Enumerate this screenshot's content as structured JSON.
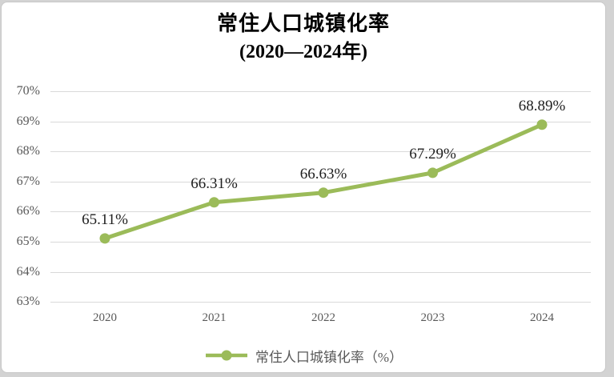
{
  "window": {
    "background_color": "#d3d3d3",
    "chart_background_color": "#ffffff",
    "chart_border_color": "#c9c9c9"
  },
  "chart_data": {
    "type": "line",
    "title": "常住人口城镇化率",
    "subtitle": "(2020—2024年)",
    "categories": [
      "2020",
      "2021",
      "2022",
      "2023",
      "2024"
    ],
    "series": [
      {
        "name": "常住人口城镇化率（%）",
        "values": [
          65.11,
          66.31,
          66.63,
          67.29,
          68.89
        ],
        "color": "#9bbb59"
      }
    ],
    "data_labels": [
      "65.11%",
      "66.31%",
      "66.63%",
      "67.29%",
      "68.89%"
    ],
    "ylim": [
      63,
      70
    ],
    "ytick_step": 1,
    "ytick_labels": [
      "63%",
      "64%",
      "65%",
      "66%",
      "67%",
      "68%",
      "69%",
      "70%"
    ],
    "grid": true,
    "legend_position": "bottom",
    "legend_label": "常住人口城镇化率（%）"
  },
  "colors": {
    "series": "#9bbb59",
    "gridline": "#d9d9d9",
    "axis_text": "#595959",
    "data_label_text": "#1f1f1f",
    "title_text": "#000000",
    "legend_text": "#595959"
  }
}
